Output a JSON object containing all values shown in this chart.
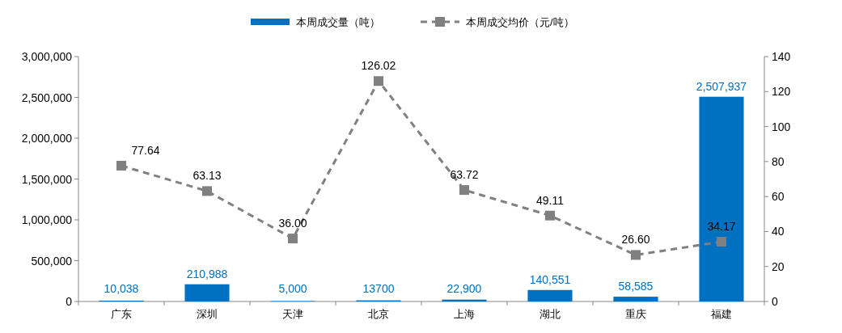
{
  "chart_data": {
    "type": "bar",
    "legend": "top",
    "categories": [
      "广东",
      "深圳",
      "天津",
      "北京",
      "上海",
      "湖北",
      "重庆",
      "福建"
    ],
    "series": [
      {
        "name": "本周成交量（吨）",
        "color": "#0070c0",
        "values": [
          10038,
          210988,
          5000,
          13700,
          22900,
          140551,
          58585,
          2507937
        ],
        "value_labels": [
          "10,038",
          "210,988",
          "5,000",
          "13700",
          "22,900",
          "140,551",
          "58,585",
          "2,507,937"
        ]
      },
      {
        "name": "本周成交均价（元/吨）",
        "type": "line",
        "axis": "y2",
        "color": "#808080",
        "marker": "square",
        "line_style": "dashed",
        "values": [
          77.64,
          63.13,
          36.0,
          126.02,
          63.72,
          49.11,
          26.6,
          34.17
        ],
        "value_labels": [
          "77.64",
          "63.13",
          "36.00",
          "126.02",
          "63.72",
          "49.11",
          "26.60",
          "34.17"
        ]
      }
    ],
    "ylim": [
      0,
      3000000
    ],
    "yticks": [
      {
        "value": 0,
        "label": "0"
      },
      {
        "value": 500000,
        "label": "500,000"
      },
      {
        "value": 1000000,
        "label": "1,000,000"
      },
      {
        "value": 1500000,
        "label": "1,500,000"
      },
      {
        "value": 2000000,
        "label": "2,000,000"
      },
      {
        "value": 2500000,
        "label": "2,500,000"
      },
      {
        "value": 3000000,
        "label": "3,000,000"
      }
    ],
    "y2lim": [
      0,
      140
    ],
    "y2ticks": [
      0,
      20,
      40,
      60,
      80,
      100,
      120,
      140
    ]
  }
}
